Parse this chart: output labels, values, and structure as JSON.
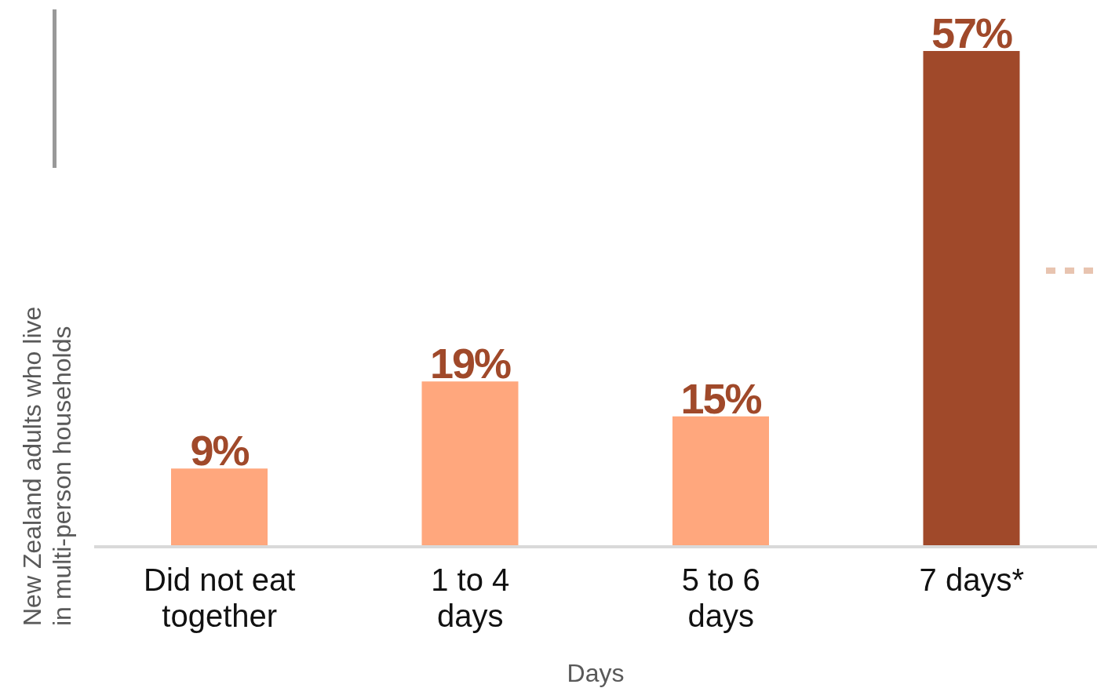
{
  "chart_data": {
    "type": "bar",
    "xlabel": "Days",
    "ylabel": "New Zealand adults who live in multi-person households",
    "categories": [
      "Did not eat together",
      "1 to 4 days",
      "5 to 6 days",
      "7 days*"
    ],
    "values": [
      9,
      19,
      15,
      57
    ],
    "value_labels": [
      "9%",
      "19%",
      "15%",
      "57%"
    ],
    "colors": [
      "#ffa77d",
      "#ffa77d",
      "#ffa77d",
      "#a0492a"
    ],
    "tick_labels": "x"
  }
}
